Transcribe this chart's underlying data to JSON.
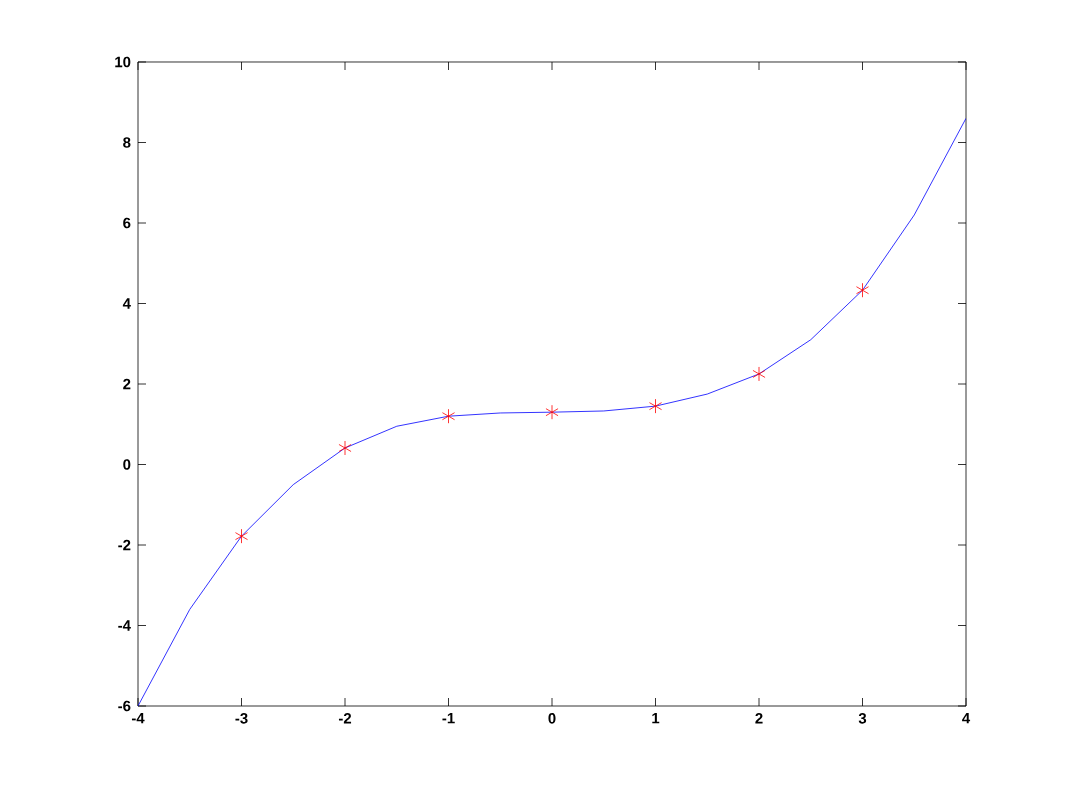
{
  "chart_data": {
    "type": "line",
    "xlim": [
      -4,
      4
    ],
    "ylim": [
      -6,
      10
    ],
    "xticks": [
      -4,
      -3,
      -2,
      -1,
      0,
      1,
      2,
      3,
      4
    ],
    "yticks": [
      -6,
      -4,
      -2,
      0,
      2,
      4,
      6,
      8,
      10
    ],
    "grid": false,
    "series": [
      {
        "color": "#0000ff",
        "marker": "none",
        "x": [
          -4,
          -3.5,
          -3,
          -2.5,
          -2,
          -1.5,
          -1,
          -0.5,
          0,
          0.5,
          1,
          1.5,
          2,
          2.5,
          3,
          3.5,
          4
        ],
        "values": [
          -6.0,
          -3.6,
          -1.78,
          -0.5,
          0.41,
          0.95,
          1.2,
          1.28,
          1.3,
          1.33,
          1.45,
          1.75,
          2.25,
          3.1,
          4.33,
          6.2,
          8.6
        ]
      },
      {
        "type": "scatter",
        "color": "#ff0000",
        "marker": "cross",
        "x": [
          -3,
          -2,
          -1,
          0,
          1,
          2,
          3
        ],
        "values": [
          -1.78,
          0.41,
          1.2,
          1.3,
          1.45,
          2.25,
          4.33
        ]
      }
    ]
  }
}
